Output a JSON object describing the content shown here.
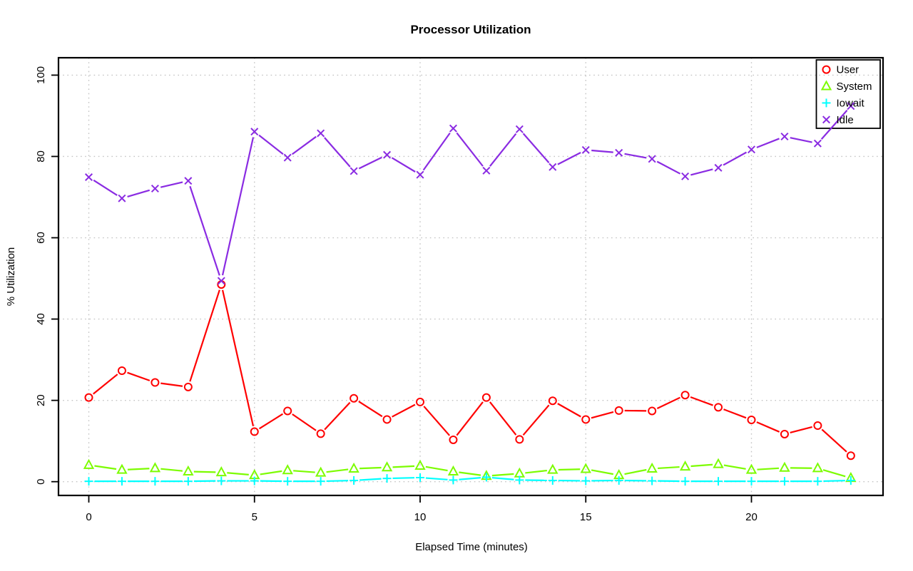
{
  "page_bg": "#ffffff",
  "chart_data": {
    "type": "line",
    "title": "Processor Utilization",
    "xlabel": "Elapsed Time (minutes)",
    "ylabel": "% Utilization",
    "grid": "dotted",
    "grid_color": "#c4c4c4",
    "box_color": "#000000",
    "legend_position": "top-right",
    "xlim": [
      0,
      23
    ],
    "ylim": [
      0,
      100
    ],
    "xticks": [
      0,
      5,
      10,
      15,
      20
    ],
    "yticks": [
      0,
      20,
      40,
      60,
      80,
      100
    ],
    "x": [
      0,
      1,
      2,
      3,
      4,
      5,
      6,
      7,
      8,
      9,
      10,
      11,
      12,
      13,
      14,
      15,
      16,
      17,
      18,
      19,
      20,
      21,
      22,
      23
    ],
    "series": [
      {
        "name": "User",
        "color": "#ff0000",
        "marker": "circle",
        "values": [
          20.7,
          27.3,
          24.4,
          23.3,
          48.5,
          12.3,
          17.4,
          11.8,
          20.5,
          15.3,
          19.6,
          10.3,
          20.7,
          10.4,
          19.9,
          15.3,
          17.5,
          17.4,
          21.3,
          18.3,
          15.2,
          11.7,
          13.8,
          6.4
        ]
      },
      {
        "name": "System",
        "color": "#7cfc00",
        "marker": "triangle",
        "values": [
          4.1,
          2.9,
          3.3,
          2.5,
          2.3,
          1.6,
          2.8,
          2.2,
          3.2,
          3.5,
          3.9,
          2.5,
          1.4,
          2.0,
          2.9,
          3.1,
          1.6,
          3.2,
          3.7,
          4.3,
          2.9,
          3.4,
          3.3,
          0.9
        ]
      },
      {
        "name": "Iowait",
        "color": "#00ffff",
        "marker": "plus",
        "values": [
          0.1,
          0.1,
          0.1,
          0.1,
          0.2,
          0.2,
          0.1,
          0.1,
          0.3,
          0.8,
          1.0,
          0.4,
          1.1,
          0.4,
          0.3,
          0.2,
          0.3,
          0.2,
          0.1,
          0.1,
          0.1,
          0.1,
          0.1,
          0.3
        ]
      },
      {
        "name": "Idle",
        "color": "#8a2be2",
        "marker": "x",
        "values": [
          74.9,
          69.7,
          72.1,
          74.0,
          49.4,
          86.1,
          79.7,
          85.7,
          76.4,
          80.4,
          75.5,
          86.9,
          76.5,
          86.7,
          77.4,
          81.6,
          80.9,
          79.4,
          75.1,
          77.2,
          81.7,
          84.9,
          83.2,
          92.4
        ]
      }
    ]
  }
}
